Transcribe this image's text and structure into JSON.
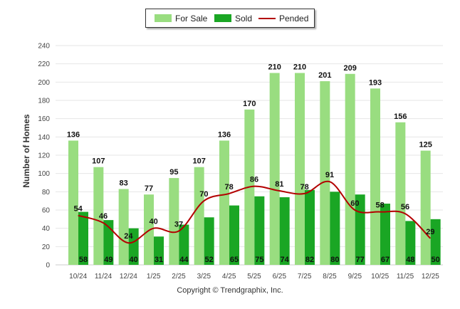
{
  "legend": {
    "for_sale": "For Sale",
    "sold": "Sold",
    "pended": "Pended"
  },
  "copyright": "Copyright © Trendgraphix, Inc.",
  "colors": {
    "for_sale": "#99dd80",
    "sold": "#1aa624",
    "pended": "#b30000",
    "grid": "#e6e6e6"
  },
  "chart_data": {
    "type": "bar",
    "ylabel": "Number of Homes",
    "xlabel": "",
    "ylim": [
      0,
      240
    ],
    "yticks": [
      0,
      20,
      40,
      60,
      80,
      100,
      120,
      140,
      160,
      180,
      200,
      220,
      240
    ],
    "grid": true,
    "legend_position": "top",
    "categories": [
      "10/24",
      "11/24",
      "12/24",
      "1/25",
      "2/25",
      "3/25",
      "4/25",
      "5/25",
      "6/25",
      "7/25",
      "8/25",
      "9/25",
      "10/25",
      "11/25",
      "12/25"
    ],
    "series": [
      {
        "name": "For Sale",
        "type": "bar",
        "values": [
          136,
          107,
          83,
          77,
          95,
          107,
          136,
          170,
          210,
          210,
          201,
          209,
          193,
          156,
          125
        ]
      },
      {
        "name": "Sold",
        "type": "bar",
        "values": [
          58,
          49,
          40,
          31,
          44,
          52,
          65,
          75,
          74,
          82,
          80,
          77,
          67,
          48,
          50
        ]
      },
      {
        "name": "Pended",
        "type": "line",
        "values": [
          54,
          46,
          24,
          40,
          37,
          70,
          78,
          86,
          81,
          78,
          91,
          60,
          58,
          56,
          29
        ]
      }
    ]
  }
}
